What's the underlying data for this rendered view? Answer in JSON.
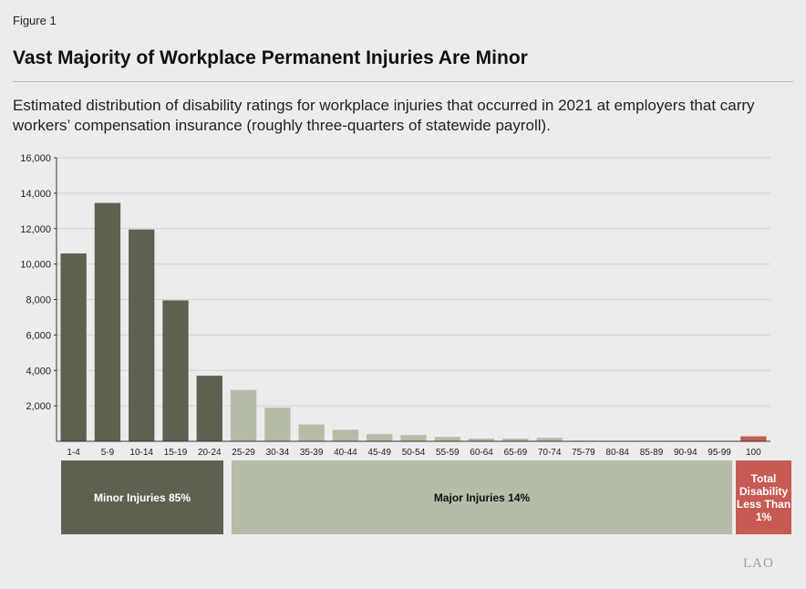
{
  "figure_label": "Figure 1",
  "title": "Vast Majority of Workplace Permanent Injuries Are Minor",
  "subtitle": "Estimated distribution of disability ratings for workplace injuries that occurred in 2021 at employers that carry workers’ compensation insurance (roughly three-quarters of statewide payroll).",
  "logo": "LAO",
  "colors": {
    "minor": "#5e6150",
    "major": "#b4bda7",
    "total": "#c75a53"
  },
  "groups": {
    "minor_label": "Minor Injuries 85%",
    "major_label": "Major Injuries 14%",
    "total_label_lines": [
      "Total",
      "Disability",
      "Less Than",
      "1%"
    ]
  },
  "chart_data": {
    "type": "bar",
    "title": "Vast Majority of Workplace Permanent Injuries Are Minor",
    "xlabel": "",
    "ylabel": "",
    "ylim": [
      0,
      16000
    ],
    "yticks": [
      2000,
      4000,
      6000,
      8000,
      10000,
      12000,
      14000,
      16000
    ],
    "ytick_labels": [
      "2,000",
      "4,000",
      "6,000",
      "8,000",
      "10,000",
      "12,000",
      "14,000",
      "16,000"
    ],
    "grid": true,
    "categories": [
      "1-4",
      "5-9",
      "10-14",
      "15-19",
      "20-24",
      "25-29",
      "30-34",
      "35-39",
      "40-44",
      "45-49",
      "50-54",
      "55-59",
      "60-64",
      "65-69",
      "70-74",
      "75-79",
      "80-84",
      "85-89",
      "90-94",
      "95-99",
      "100"
    ],
    "values": [
      10600,
      13450,
      11950,
      7950,
      3700,
      2900,
      1900,
      950,
      650,
      400,
      350,
      250,
      150,
      150,
      200,
      30,
      20,
      15,
      10,
      10,
      280
    ],
    "groups": [
      "minor",
      "minor",
      "minor",
      "minor",
      "minor",
      "major",
      "major",
      "major",
      "major",
      "major",
      "major",
      "major",
      "major",
      "major",
      "major",
      "major",
      "major",
      "major",
      "major",
      "major",
      "total"
    ]
  }
}
